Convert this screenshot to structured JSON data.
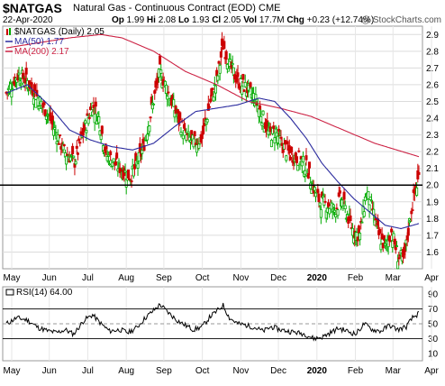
{
  "header": {
    "symbol": "$NATGAS",
    "description": "Natural Gas - Continuous Contract (EOD)",
    "exchange": "CME",
    "date": "22-Apr-2020",
    "open_label": "Op",
    "open": "1.99",
    "high_label": "Hi",
    "high": "2.08",
    "low_label": "Lo",
    "low": "1.93",
    "close_label": "Cl",
    "close": "2.05",
    "volume_label": "Vol",
    "volume": "17.7M",
    "change_label": "Chg",
    "change": "+0.23 (+12.74%)",
    "credit": "@ StockCharts.com"
  },
  "colors": {
    "up": "#00aa00",
    "down": "#cc0000",
    "ma50": "#2b2b9e",
    "ma200": "#cc2244",
    "rsi": "#000000",
    "hline": "#000000"
  },
  "chart_data": [
    {
      "type": "candlestick",
      "name": "price",
      "legend": [
        {
          "label": "$NATGAS (Daily) 2.05",
          "color": "#000000"
        },
        {
          "label": "MA(50) 1.77",
          "color": "#2b2b9e"
        },
        {
          "label": "MA(200) 2.17",
          "color": "#cc2244"
        }
      ],
      "months": [
        "May",
        "Jun",
        "Jul",
        "Aug",
        "Sep",
        "Oct",
        "Nov",
        "Dec",
        "2020",
        "Feb",
        "Mar",
        "Apr"
      ],
      "yticks": [
        1.6,
        1.7,
        1.8,
        1.9,
        2.0,
        2.1,
        2.2,
        2.3,
        2.4,
        2.5,
        2.6,
        2.7,
        2.8,
        2.9
      ],
      "ylim": [
        1.5,
        2.95
      ],
      "horizontal_line": 2.0,
      "close_anchors": [
        [
          0,
          2.55
        ],
        [
          5,
          2.6
        ],
        [
          12,
          2.66
        ],
        [
          20,
          2.62
        ],
        [
          30,
          2.52
        ],
        [
          40,
          2.42
        ],
        [
          48,
          2.3
        ],
        [
          55,
          2.2
        ],
        [
          65,
          2.14
        ],
        [
          75,
          2.35
        ],
        [
          82,
          2.48
        ],
        [
          88,
          2.4
        ],
        [
          95,
          2.18
        ],
        [
          105,
          2.12
        ],
        [
          112,
          2.08
        ],
        [
          118,
          2.05
        ],
        [
          124,
          2.12
        ],
        [
          130,
          2.22
        ],
        [
          138,
          2.45
        ],
        [
          146,
          2.68
        ],
        [
          154,
          2.55
        ],
        [
          162,
          2.42
        ],
        [
          170,
          2.3
        ],
        [
          178,
          2.25
        ],
        [
          186,
          2.28
        ],
        [
          194,
          2.5
        ],
        [
          200,
          2.62
        ],
        [
          206,
          2.84
        ],
        [
          212,
          2.72
        ],
        [
          220,
          2.62
        ],
        [
          228,
          2.58
        ],
        [
          236,
          2.52
        ],
        [
          244,
          2.4
        ],
        [
          250,
          2.3
        ],
        [
          256,
          2.32
        ],
        [
          262,
          2.24
        ],
        [
          270,
          2.18
        ],
        [
          278,
          2.16
        ],
        [
          286,
          2.1
        ],
        [
          292,
          1.98
        ],
        [
          298,
          1.9
        ],
        [
          306,
          1.88
        ],
        [
          312,
          1.85
        ],
        [
          318,
          1.92
        ],
        [
          324,
          1.82
        ],
        [
          330,
          1.72
        ],
        [
          336,
          1.7
        ],
        [
          342,
          1.96
        ],
        [
          348,
          1.85
        ],
        [
          354,
          1.7
        ],
        [
          360,
          1.63
        ],
        [
          366,
          1.72
        ],
        [
          372,
          1.58
        ],
        [
          378,
          1.55
        ],
        [
          384,
          1.82
        ],
        [
          388,
          1.95
        ],
        [
          392,
          2.05
        ]
      ],
      "ma50_anchors": [
        [
          0,
          2.55
        ],
        [
          20,
          2.6
        ],
        [
          40,
          2.48
        ],
        [
          60,
          2.33
        ],
        [
          80,
          2.27
        ],
        [
          100,
          2.23
        ],
        [
          120,
          2.21
        ],
        [
          140,
          2.25
        ],
        [
          160,
          2.35
        ],
        [
          180,
          2.44
        ],
        [
          200,
          2.46
        ],
        [
          220,
          2.48
        ],
        [
          240,
          2.52
        ],
        [
          255,
          2.5
        ],
        [
          270,
          2.4
        ],
        [
          285,
          2.28
        ],
        [
          300,
          2.13
        ],
        [
          315,
          2.02
        ],
        [
          330,
          1.92
        ],
        [
          345,
          1.84
        ],
        [
          360,
          1.76
        ],
        [
          375,
          1.74
        ],
        [
          392,
          1.77
        ]
      ],
      "ma200_anchors": [
        [
          0,
          2.82
        ],
        [
          30,
          2.85
        ],
        [
          60,
          2.88
        ],
        [
          90,
          2.9
        ],
        [
          110,
          2.88
        ],
        [
          140,
          2.8
        ],
        [
          170,
          2.68
        ],
        [
          200,
          2.6
        ],
        [
          230,
          2.5
        ],
        [
          260,
          2.46
        ],
        [
          290,
          2.41
        ],
        [
          320,
          2.33
        ],
        [
          350,
          2.25
        ],
        [
          392,
          2.17
        ]
      ]
    },
    {
      "type": "line",
      "name": "rsi",
      "legend": [
        {
          "label": "RSI(14) 64.00",
          "color": "#000000"
        }
      ],
      "months": [
        "May",
        "Jun",
        "Jul",
        "Aug",
        "Sep",
        "Oct",
        "Nov",
        "Dec",
        "2020",
        "Feb",
        "Mar",
        "Apr"
      ],
      "yticks": [
        10,
        30,
        50,
        70,
        90
      ],
      "ylim": [
        0,
        100
      ],
      "reference_lines": [
        30,
        50,
        70
      ],
      "rsi_anchors": [
        [
          0,
          50
        ],
        [
          10,
          58
        ],
        [
          20,
          55
        ],
        [
          30,
          45
        ],
        [
          40,
          40
        ],
        [
          48,
          38
        ],
        [
          56,
          42
        ],
        [
          64,
          36
        ],
        [
          74,
          55
        ],
        [
          82,
          62
        ],
        [
          90,
          50
        ],
        [
          98,
          40
        ],
        [
          108,
          42
        ],
        [
          116,
          38
        ],
        [
          124,
          45
        ],
        [
          132,
          58
        ],
        [
          140,
          68
        ],
        [
          146,
          76
        ],
        [
          154,
          65
        ],
        [
          162,
          55
        ],
        [
          170,
          48
        ],
        [
          178,
          42
        ],
        [
          186,
          46
        ],
        [
          194,
          60
        ],
        [
          200,
          67
        ],
        [
          206,
          75
        ],
        [
          212,
          58
        ],
        [
          220,
          50
        ],
        [
          228,
          48
        ],
        [
          236,
          45
        ],
        [
          244,
          40
        ],
        [
          252,
          46
        ],
        [
          260,
          42
        ],
        [
          268,
          40
        ],
        [
          276,
          38
        ],
        [
          284,
          36
        ],
        [
          292,
          30
        ],
        [
          300,
          32
        ],
        [
          308,
          38
        ],
        [
          316,
          44
        ],
        [
          324,
          40
        ],
        [
          332,
          36
        ],
        [
          340,
          50
        ],
        [
          348,
          42
        ],
        [
          356,
          40
        ],
        [
          364,
          48
        ],
        [
          372,
          42
        ],
        [
          380,
          46
        ],
        [
          386,
          58
        ],
        [
          392,
          64
        ]
      ]
    }
  ]
}
